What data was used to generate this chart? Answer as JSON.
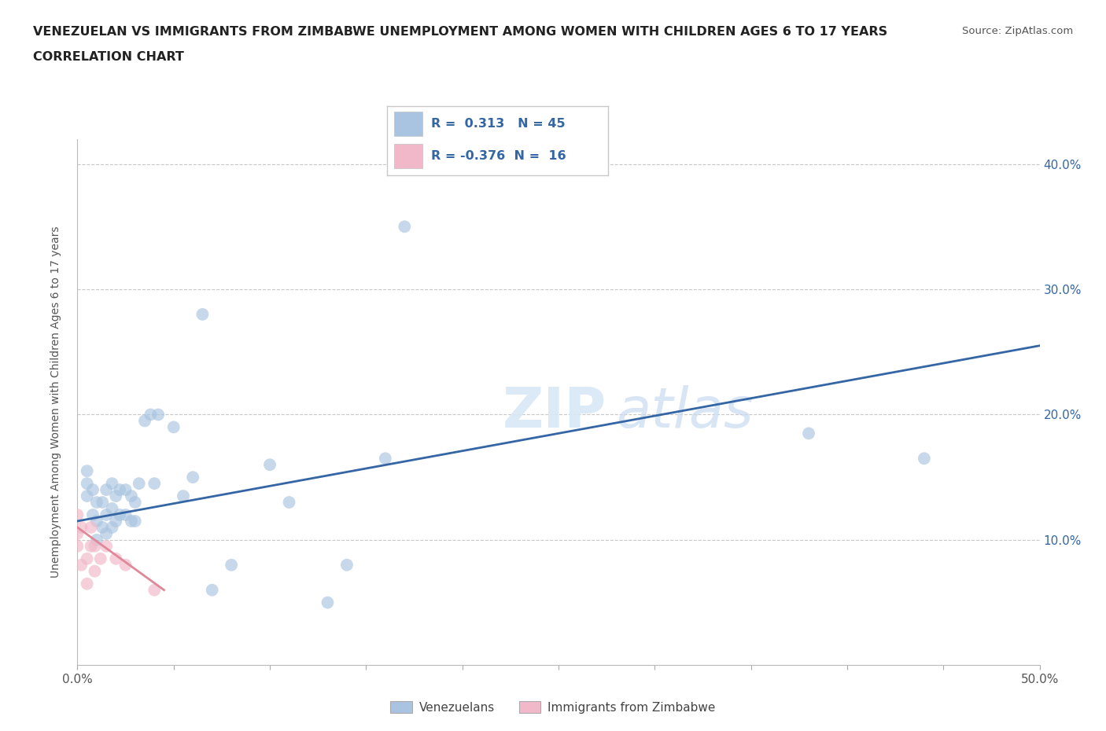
{
  "title_line1": "VENEZUELAN VS IMMIGRANTS FROM ZIMBABWE UNEMPLOYMENT AMONG WOMEN WITH CHILDREN AGES 6 TO 17 YEARS",
  "title_line2": "CORRELATION CHART",
  "source": "Source: ZipAtlas.com",
  "ylabel_label": "Unemployment Among Women with Children Ages 6 to 17 years",
  "xlim": [
    0.0,
    0.5
  ],
  "ylim": [
    0.0,
    0.42
  ],
  "xticks": [
    0.0,
    0.05,
    0.1,
    0.15,
    0.2,
    0.25,
    0.3,
    0.35,
    0.4,
    0.45,
    0.5
  ],
  "yticks": [
    0.0,
    0.1,
    0.2,
    0.3,
    0.4
  ],
  "watermark_zip": "ZIP",
  "watermark_atlas": "atlas",
  "venezuelan_color": "#a8c4e0",
  "zimbabwe_color": "#f0b8c8",
  "venezuelan_line_color": "#3465a4",
  "zimbabwe_line_color": "#e08898",
  "R_venezuelan": 0.313,
  "N_venezuelan": 45,
  "R_zimbabwe": -0.376,
  "N_zimbabwe": 16,
  "venezuelan_x": [
    0.005,
    0.005,
    0.005,
    0.008,
    0.008,
    0.01,
    0.01,
    0.01,
    0.013,
    0.013,
    0.015,
    0.015,
    0.015,
    0.018,
    0.018,
    0.018,
    0.02,
    0.02,
    0.022,
    0.022,
    0.025,
    0.025,
    0.028,
    0.028,
    0.03,
    0.03,
    0.032,
    0.035,
    0.038,
    0.04,
    0.042,
    0.05,
    0.055,
    0.06,
    0.065,
    0.07,
    0.08,
    0.1,
    0.11,
    0.13,
    0.14,
    0.16,
    0.17,
    0.38,
    0.44
  ],
  "venezuelan_y": [
    0.135,
    0.145,
    0.155,
    0.12,
    0.14,
    0.1,
    0.115,
    0.13,
    0.11,
    0.13,
    0.105,
    0.12,
    0.14,
    0.11,
    0.125,
    0.145,
    0.115,
    0.135,
    0.12,
    0.14,
    0.12,
    0.14,
    0.115,
    0.135,
    0.115,
    0.13,
    0.145,
    0.195,
    0.2,
    0.145,
    0.2,
    0.19,
    0.135,
    0.15,
    0.28,
    0.06,
    0.08,
    0.16,
    0.13,
    0.05,
    0.08,
    0.165,
    0.35,
    0.185,
    0.165
  ],
  "zimbabwe_x": [
    0.0,
    0.0,
    0.0,
    0.002,
    0.002,
    0.005,
    0.005,
    0.007,
    0.007,
    0.009,
    0.009,
    0.012,
    0.015,
    0.02,
    0.025,
    0.04
  ],
  "zimbabwe_y": [
    0.095,
    0.105,
    0.12,
    0.08,
    0.11,
    0.065,
    0.085,
    0.095,
    0.11,
    0.075,
    0.095,
    0.085,
    0.095,
    0.085,
    0.08,
    0.06
  ],
  "ven_line_x0": 0.0,
  "ven_line_x1": 0.5,
  "ven_line_y0": 0.115,
  "ven_line_y1": 0.255,
  "zim_line_x0": 0.0,
  "zim_line_x1": 0.045,
  "zim_line_y0": 0.11,
  "zim_line_y1": 0.06,
  "background_color": "#ffffff",
  "grid_color": "#c8c8c8",
  "dot_size": 130,
  "dot_alpha": 0.65
}
